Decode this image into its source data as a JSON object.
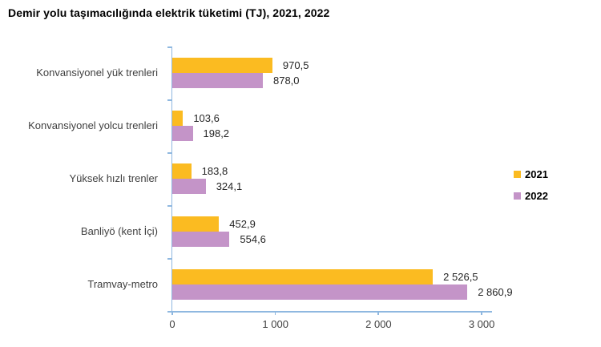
{
  "chart_data": {
    "type": "bar",
    "orientation": "horizontal",
    "title": "Demir yolu taşımacılığında elektrik tüketimi (TJ), 2021, 2022",
    "categories": [
      "Konvansiyonel yük trenleri",
      "Konvansiyonel yolcu trenleri",
      "Yüksek hızlı trenler",
      "Banliyö (kent İçi)",
      "Tramvay-metro"
    ],
    "series": [
      {
        "name": "2021",
        "color": "#FBBB21",
        "values": [
          970.5,
          103.6,
          183.8,
          452.9,
          2526.5
        ],
        "labels": [
          "970,5",
          "103,6",
          "183,8",
          "452,9",
          "2 526,5"
        ]
      },
      {
        "name": "2022",
        "color": "#C494C8",
        "values": [
          878.0,
          198.2,
          324.1,
          554.6,
          2860.9
        ],
        "labels": [
          "878,0",
          "198,2",
          "324,1",
          "554,6",
          "2 860,9"
        ]
      }
    ],
    "xlim": [
      0,
      3000
    ],
    "x_ticks": [
      0,
      1000,
      2000,
      3000
    ],
    "x_tick_labels": [
      "0",
      "1 000",
      "2 000",
      "3 000"
    ],
    "legend_position": "right",
    "grid": "off",
    "axis_color": "#8FB8E0"
  }
}
